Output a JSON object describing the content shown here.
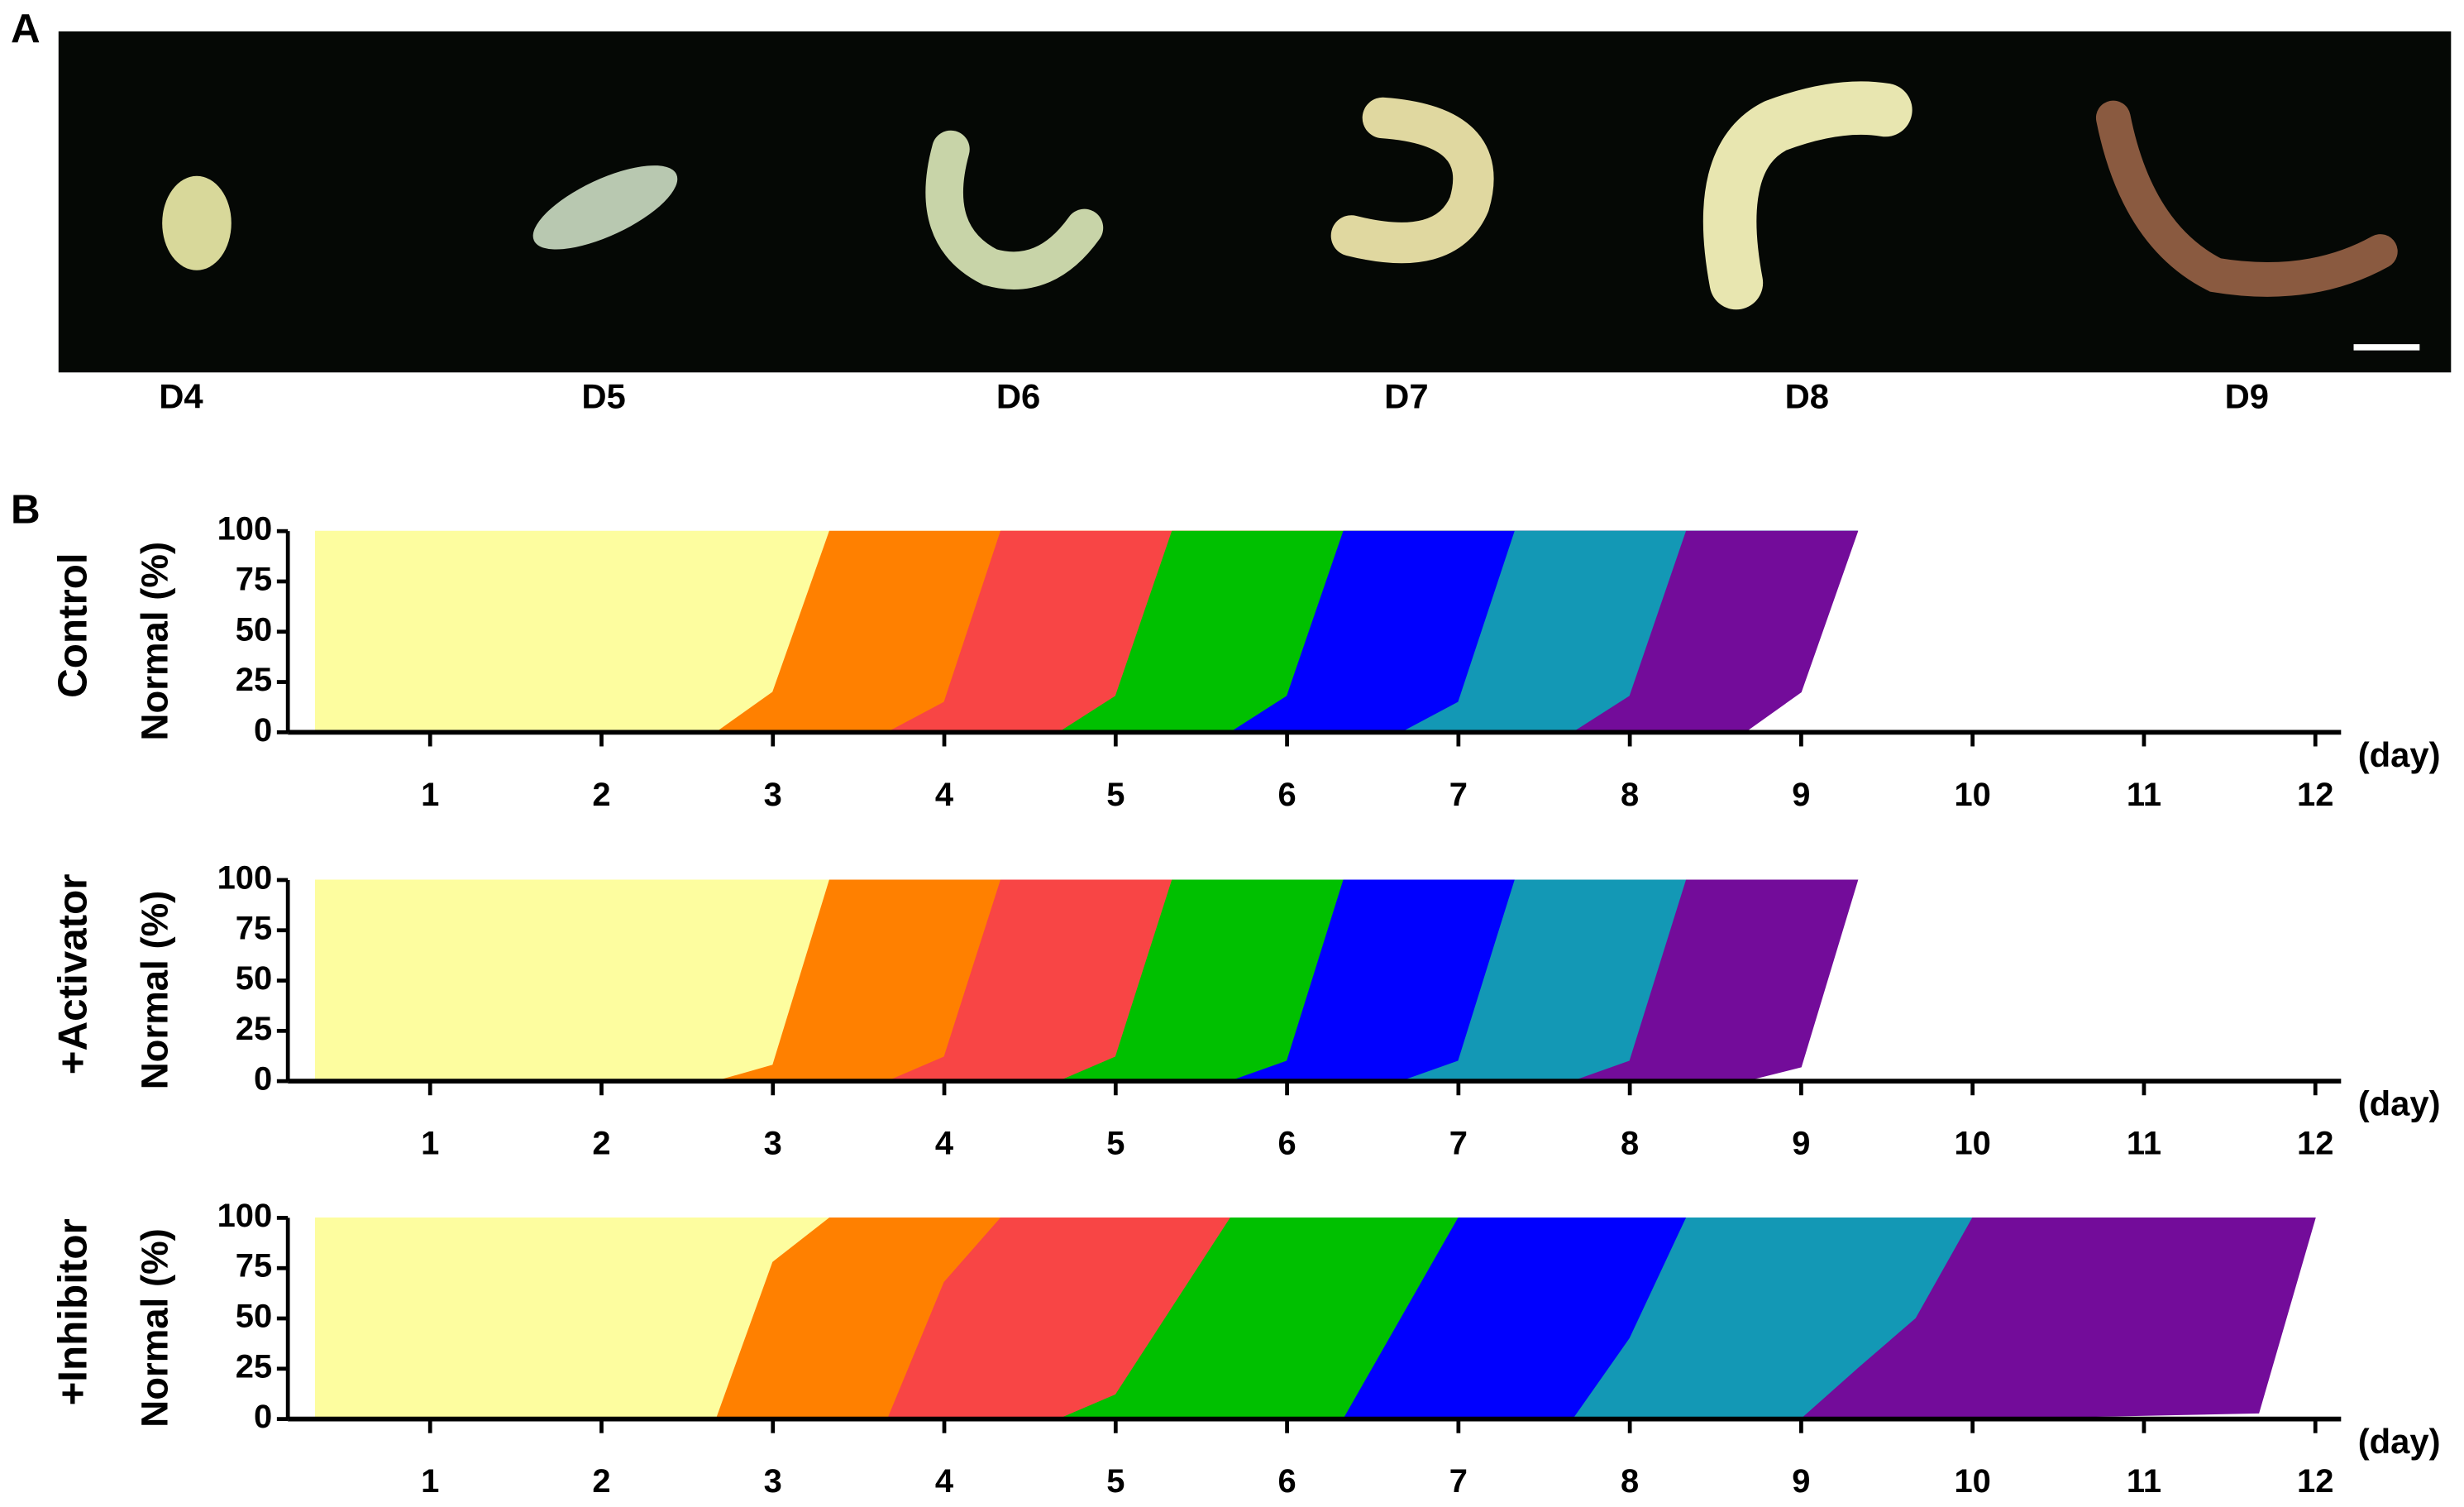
{
  "panel_labels": [
    "A",
    "B"
  ],
  "image_labels": [
    "D4",
    "D5",
    "D6",
    "D7",
    "D8",
    "D9"
  ],
  "chart_data": [
    {
      "type": "area",
      "title": "Control",
      "ylabel": "Normal (%)",
      "xlabel": "(day)",
      "x": [
        0.33,
        2.67,
        3,
        3.33,
        3.67,
        4,
        4.33,
        4.67,
        5,
        5.33,
        5.67,
        6,
        6.33,
        6.67,
        7,
        7.33,
        7.67,
        8,
        8.33,
        8.67,
        9,
        9.33
      ],
      "series": [
        {
          "color": "#fdfd9f",
          "values": [
            100,
            100,
            80,
            0,
            0,
            0,
            0,
            0,
            0,
            0,
            0,
            0,
            0,
            0,
            0,
            0,
            0,
            0,
            0,
            0,
            0,
            0
          ]
        },
        {
          "color": "#ff8000",
          "values": [
            0,
            0,
            20,
            100,
            100,
            85,
            0,
            0,
            0,
            0,
            0,
            0,
            0,
            0,
            0,
            0,
            0,
            0,
            0,
            0,
            0,
            0
          ]
        },
        {
          "color": "#f84545",
          "values": [
            0,
            0,
            0,
            0,
            0,
            15,
            100,
            100,
            82,
            0,
            0,
            0,
            0,
            0,
            0,
            0,
            0,
            0,
            0,
            0,
            0,
            0
          ]
        },
        {
          "color": "#00c000",
          "values": [
            0,
            0,
            0,
            0,
            0,
            0,
            0,
            0,
            18,
            100,
            100,
            82,
            0,
            0,
            0,
            0,
            0,
            0,
            0,
            0,
            0,
            0
          ]
        },
        {
          "color": "#0000ff",
          "values": [
            0,
            0,
            0,
            0,
            0,
            0,
            0,
            0,
            0,
            0,
            0,
            18,
            100,
            100,
            85,
            0,
            0,
            0,
            0,
            0,
            0,
            0
          ]
        },
        {
          "color": "#1398b5",
          "values": [
            0,
            0,
            0,
            0,
            0,
            0,
            0,
            0,
            0,
            0,
            0,
            0,
            0,
            0,
            15,
            100,
            100,
            82,
            0,
            0,
            0,
            0
          ]
        },
        {
          "color": "#730c9a",
          "values": [
            0,
            0,
            0,
            0,
            0,
            0,
            0,
            0,
            0,
            0,
            0,
            0,
            0,
            0,
            0,
            0,
            0,
            18,
            100,
            100,
            80,
            0
          ]
        }
      ],
      "xlim": [
        0.17,
        12.15
      ],
      "ylim": [
        0,
        100
      ],
      "xticks": [
        1,
        2,
        3,
        4,
        5,
        6,
        7,
        8,
        9,
        10,
        11,
        12
      ],
      "yticks": [
        0,
        25,
        50,
        75,
        100
      ]
    },
    {
      "type": "area",
      "title": "+Activator",
      "ylabel": "Normal (%)",
      "xlabel": "(day)",
      "x": [
        0.33,
        2.67,
        3,
        3.33,
        3.67,
        4,
        4.33,
        4.67,
        5,
        5.33,
        5.67,
        6,
        6.33,
        6.67,
        7,
        7.33,
        7.67,
        8,
        8.33,
        8.67,
        9,
        9.33
      ],
      "series": [
        {
          "color": "#fdfd9f",
          "values": [
            100,
            100,
            92,
            0,
            0,
            0,
            0,
            0,
            0,
            0,
            0,
            0,
            0,
            0,
            0,
            0,
            0,
            0,
            0,
            0,
            0,
            0
          ]
        },
        {
          "color": "#ff8000",
          "values": [
            0,
            0,
            8,
            100,
            100,
            88,
            0,
            0,
            0,
            0,
            0,
            0,
            0,
            0,
            0,
            0,
            0,
            0,
            0,
            0,
            0,
            0
          ]
        },
        {
          "color": "#f84545",
          "values": [
            0,
            0,
            0,
            0,
            0,
            12,
            100,
            100,
            88,
            0,
            0,
            0,
            0,
            0,
            0,
            0,
            0,
            0,
            0,
            0,
            0,
            0
          ]
        },
        {
          "color": "#00c000",
          "values": [
            0,
            0,
            0,
            0,
            0,
            0,
            0,
            0,
            12,
            100,
            100,
            90,
            0,
            0,
            0,
            0,
            0,
            0,
            0,
            0,
            0,
            0
          ]
        },
        {
          "color": "#0000ff",
          "values": [
            0,
            0,
            0,
            0,
            0,
            0,
            0,
            0,
            0,
            0,
            0,
            10,
            100,
            100,
            90,
            0,
            0,
            0,
            0,
            0,
            0,
            0
          ]
        },
        {
          "color": "#1398b5",
          "values": [
            0,
            0,
            0,
            0,
            0,
            0,
            0,
            0,
            0,
            0,
            0,
            0,
            0,
            0,
            10,
            100,
            100,
            90,
            0,
            0,
            0,
            0
          ]
        },
        {
          "color": "#730c9a",
          "values": [
            0,
            0,
            0,
            0,
            0,
            0,
            0,
            0,
            0,
            0,
            0,
            0,
            0,
            0,
            0,
            0,
            0,
            10,
            100,
            100,
            93,
            0
          ]
        }
      ],
      "xlim": [
        0.17,
        12.15
      ],
      "ylim": [
        0,
        100
      ],
      "xticks": [
        1,
        2,
        3,
        4,
        5,
        6,
        7,
        8,
        9,
        10,
        11,
        12
      ],
      "yticks": [
        0,
        25,
        50,
        75,
        100
      ]
    },
    {
      "type": "area",
      "title": "+Inhibitor",
      "ylabel": "Normal (%)",
      "xlabel": "(day)",
      "x": [
        0.33,
        2.67,
        3,
        3.33,
        3.67,
        4,
        4.33,
        4.67,
        5,
        5.67,
        6.33,
        7,
        7.67,
        8,
        8.33,
        9,
        9.33,
        9.67,
        10,
        11.67,
        12
      ],
      "series": [
        {
          "color": "#fdfd9f",
          "values": [
            100,
            100,
            22,
            0,
            0,
            0,
            0,
            0,
            0,
            0,
            0,
            0,
            0,
            0,
            0,
            0,
            0,
            0,
            0,
            0,
            0
          ]
        },
        {
          "color": "#ff8000",
          "values": [
            0,
            0,
            78,
            100,
            100,
            32,
            0,
            0,
            0,
            0,
            0,
            0,
            0,
            0,
            0,
            0,
            0,
            0,
            0,
            0,
            0
          ]
        },
        {
          "color": "#f84545",
          "values": [
            0,
            0,
            0,
            0,
            0,
            68,
            100,
            100,
            88,
            0,
            0,
            0,
            0,
            0,
            0,
            0,
            0,
            0,
            0,
            0,
            0
          ]
        },
        {
          "color": "#00c000",
          "values": [
            0,
            0,
            0,
            0,
            0,
            0,
            0,
            0,
            12,
            100,
            100,
            0,
            0,
            0,
            0,
            0,
            0,
            0,
            0,
            0,
            0
          ]
        },
        {
          "color": "#0000ff",
          "values": [
            0,
            0,
            0,
            0,
            0,
            0,
            0,
            0,
            0,
            0,
            0,
            100,
            100,
            60,
            0,
            0,
            0,
            0,
            0,
            0,
            0
          ]
        },
        {
          "color": "#1398b5",
          "values": [
            0,
            0,
            0,
            0,
            0,
            0,
            0,
            0,
            0,
            0,
            0,
            0,
            0,
            40,
            100,
            100,
            75,
            50,
            0,
            0,
            0
          ]
        },
        {
          "color": "#730c9a",
          "values": [
            0,
            0,
            0,
            0,
            0,
            0,
            0,
            0,
            0,
            0,
            0,
            0,
            0,
            0,
            0,
            0,
            25,
            50,
            100,
            97,
            0
          ]
        }
      ],
      "xlim": [
        0.17,
        12.15
      ],
      "ylim": [
        0,
        100
      ],
      "xticks": [
        1,
        2,
        3,
        4,
        5,
        6,
        7,
        8,
        9,
        10,
        11,
        12
      ],
      "yticks": [
        0,
        25,
        50,
        75,
        100
      ]
    }
  ]
}
